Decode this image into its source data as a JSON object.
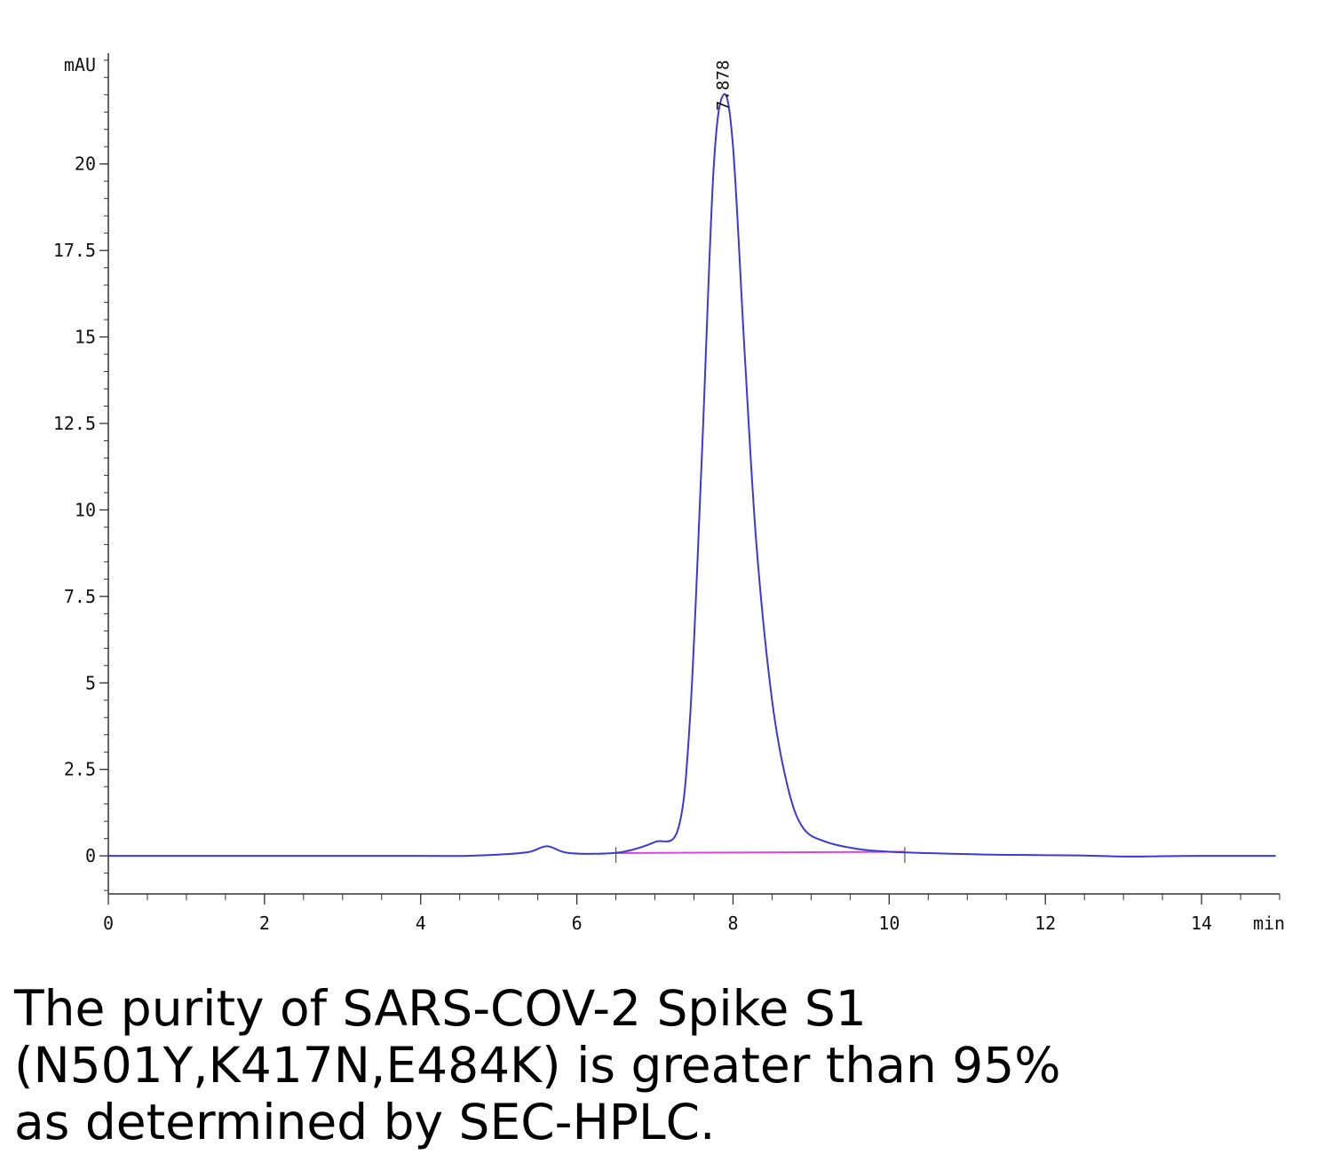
{
  "chart_data": {
    "type": "line",
    "y_unit": "mAU",
    "x_unit": "min",
    "xlim": [
      0,
      15
    ],
    "ylim": [
      -1.1,
      23.2
    ],
    "x_ticks": [
      0,
      2,
      4,
      6,
      8,
      10,
      12,
      14
    ],
    "x_tick_labels": [
      "0",
      "2",
      "4",
      "6",
      "8",
      "10",
      "12",
      "14"
    ],
    "y_ticks": [
      0,
      2.5,
      5,
      7.5,
      10,
      12.5,
      15,
      17.5,
      20
    ],
    "y_tick_labels": [
      "0",
      "2.5",
      "5",
      "7.5",
      "10",
      "12.5",
      "15",
      "17.5",
      "20"
    ],
    "grid": false,
    "series": [
      {
        "color": "#3a3ad6",
        "x": [
          0,
          1,
          2,
          3,
          4,
          4.6,
          5.1,
          5.4,
          5.62,
          5.85,
          6.2,
          6.6,
          7.0,
          7.3,
          7.45,
          7.6,
          7.75,
          7.878,
          8.0,
          8.15,
          8.3,
          8.5,
          8.7,
          8.9,
          9.2,
          9.6,
          10.0,
          10.5,
          11.0,
          11.5,
          12.0,
          12.5,
          13.0,
          13.5,
          14.0,
          14.5,
          14.95
        ],
        "y": [
          0,
          0,
          0,
          0,
          0,
          0,
          0.05,
          0.12,
          0.28,
          0.1,
          0.06,
          0.12,
          0.4,
          0.8,
          4.0,
          11.5,
          19.8,
          22.0,
          20.5,
          14.5,
          9.0,
          4.5,
          2.0,
          0.8,
          0.4,
          0.2,
          0.12,
          0.08,
          0.05,
          0.03,
          0.02,
          0.01,
          -0.02,
          -0.01,
          0.0,
          0.0,
          0.0
        ]
      }
    ],
    "baseline": {
      "color": "#e040e0",
      "x": [
        6.5,
        10.2
      ],
      "y": [
        0.08,
        0.12
      ]
    },
    "integration_marks": [
      6.5,
      10.2
    ],
    "peak_labels": [
      {
        "x": 7.878,
        "y": 22.0,
        "text": "7.878"
      }
    ]
  },
  "caption": {
    "lines": [
      "The purity of SARS-COV-2 Spike S1",
      "(N501Y,K417N,E484K) is greater than 95%",
      "as determined by SEC-HPLC."
    ]
  }
}
